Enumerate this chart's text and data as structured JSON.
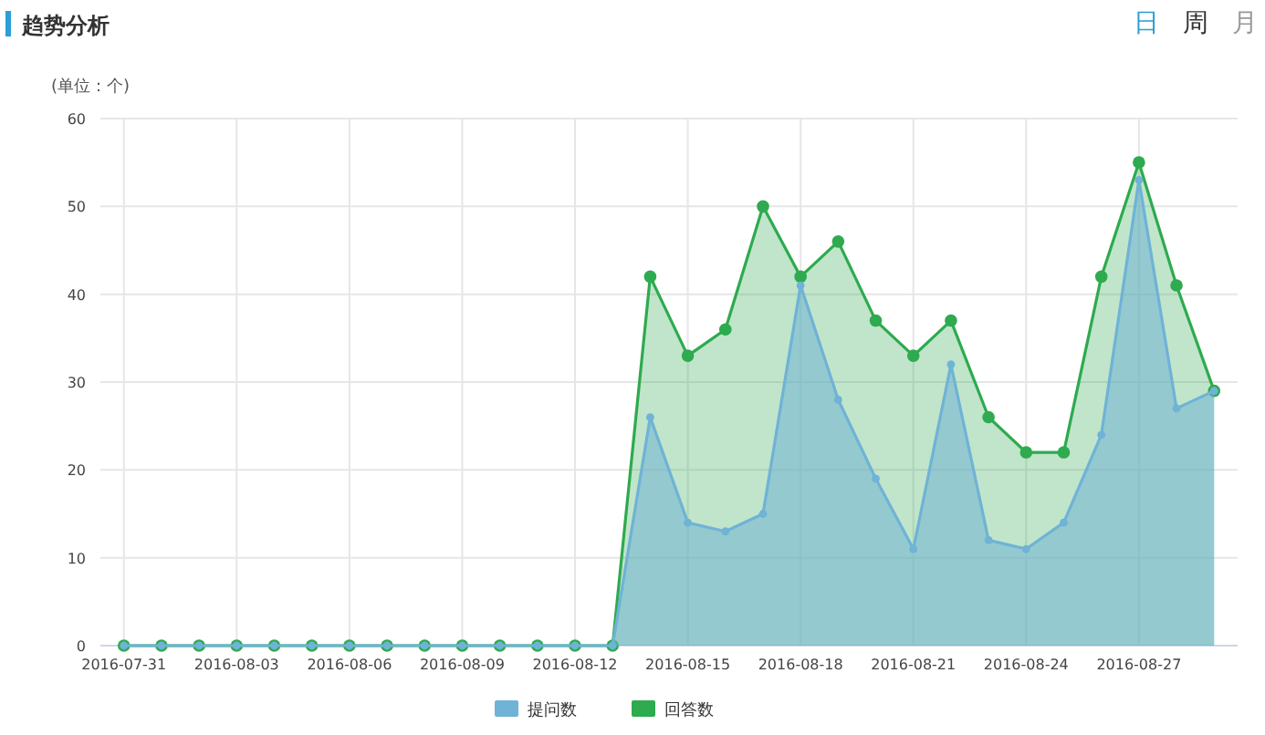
{
  "chart_data": {
    "type": "area",
    "title": "趋势分析",
    "ylabel": "(单位：个)",
    "annotations": [
      "日",
      "周",
      "月"
    ],
    "x": [
      "2016-07-31",
      "2016-08-01",
      "2016-08-02",
      "2016-08-03",
      "2016-08-04",
      "2016-08-05",
      "2016-08-06",
      "2016-08-07",
      "2016-08-08",
      "2016-08-09",
      "2016-08-10",
      "2016-08-11",
      "2016-08-12",
      "2016-08-13",
      "2016-08-14",
      "2016-08-15",
      "2016-08-16",
      "2016-08-17",
      "2016-08-18",
      "2016-08-19",
      "2016-08-20",
      "2016-08-21",
      "2016-08-22",
      "2016-08-23",
      "2016-08-24",
      "2016-08-25",
      "2016-08-26",
      "2016-08-27",
      "2016-08-28",
      "2016-08-29"
    ],
    "series": [
      {
        "name": "提问数",
        "color": "#6fb3d6",
        "values": [
          0,
          0,
          0,
          0,
          0,
          0,
          0,
          0,
          0,
          0,
          0,
          0,
          0,
          0,
          26,
          14,
          13,
          15,
          41,
          28,
          19,
          11,
          32,
          12,
          11,
          14,
          24,
          53,
          27,
          29
        ]
      },
      {
        "name": "回答数",
        "color": "#2eaa4f",
        "values": [
          0,
          0,
          0,
          0,
          0,
          0,
          0,
          0,
          0,
          0,
          0,
          0,
          0,
          0,
          42,
          33,
          36,
          50,
          42,
          46,
          37,
          33,
          37,
          26,
          22,
          22,
          42,
          55,
          41,
          29
        ]
      }
    ],
    "xlim": [
      "2016-07-30T09:00",
      "2016-08-29T15:00"
    ],
    "xticks": [
      "2016-07-31",
      "2016-08-03",
      "2016-08-06",
      "2016-08-09",
      "2016-08-12",
      "2016-08-15",
      "2016-08-18",
      "2016-08-21",
      "2016-08-24",
      "2016-08-27"
    ],
    "ylim": [
      0,
      60
    ],
    "yticks": [
      0,
      10,
      20,
      30,
      40,
      50,
      60
    ],
    "grid": true,
    "legend": "bottom",
    "marker": "circle",
    "line_style": "solid"
  }
}
